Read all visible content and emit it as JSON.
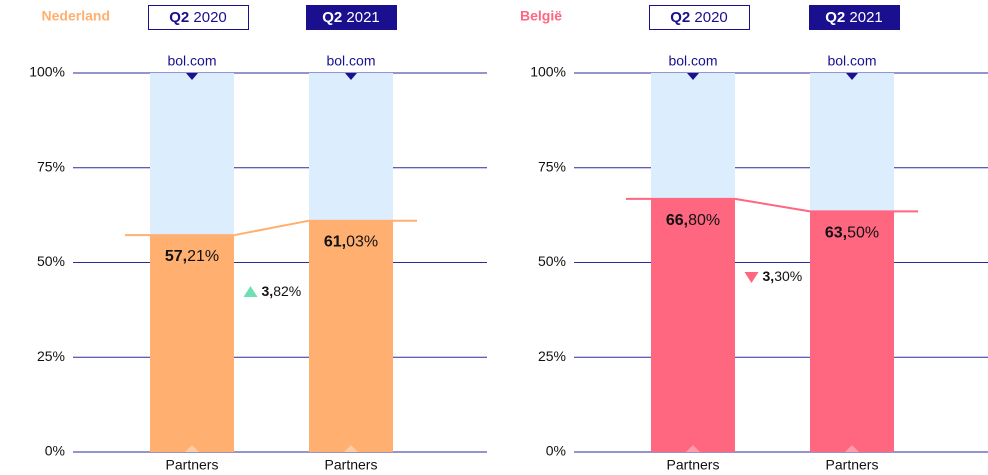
{
  "chart_data": [
    {
      "type": "bar",
      "stacked": true,
      "title": "Nederland",
      "title_color": "#ffb070",
      "categories": [
        "Q2 2020",
        "Q2 2021"
      ],
      "series": [
        {
          "name": "Partners",
          "color": "#ffb070",
          "values": [
            57.21,
            61.03
          ],
          "value_labels": [
            "57,21%",
            "61,03%"
          ]
        },
        {
          "name": "bol.com",
          "color": "#dcedfd",
          "values": [
            42.79,
            38.97
          ]
        }
      ],
      "change": {
        "value": 3.82,
        "label": "3,82%",
        "direction": "up",
        "color": "#6fe0b4"
      },
      "ylim": [
        0,
        100
      ],
      "yticks": [
        {
          "value": 0,
          "label": "0%"
        },
        {
          "value": 25,
          "label": "25%"
        },
        {
          "value": 50,
          "label": "50%"
        },
        {
          "value": 75,
          "label": "75%"
        },
        {
          "value": 100,
          "label": "100%"
        }
      ],
      "grid": true
    },
    {
      "type": "bar",
      "stacked": true,
      "title": "België",
      "title_color": "#ff6680",
      "categories": [
        "Q2 2020",
        "Q2 2021"
      ],
      "series": [
        {
          "name": "Partners",
          "color": "#ff6680",
          "values": [
            66.8,
            63.5
          ],
          "value_labels": [
            "66,80%",
            "63,50%"
          ]
        },
        {
          "name": "bol.com",
          "color": "#dcedfd",
          "values": [
            33.2,
            36.5
          ]
        }
      ],
      "change": {
        "value": 3.3,
        "label": "3,30%",
        "direction": "down",
        "color": "#ff6680"
      },
      "ylim": [
        0,
        100
      ],
      "yticks": [
        {
          "value": 0,
          "label": "0%"
        },
        {
          "value": 25,
          "label": "25%"
        },
        {
          "value": 50,
          "label": "50%"
        },
        {
          "value": 75,
          "label": "75%"
        },
        {
          "value": 100,
          "label": "100%"
        }
      ],
      "grid": true
    }
  ]
}
